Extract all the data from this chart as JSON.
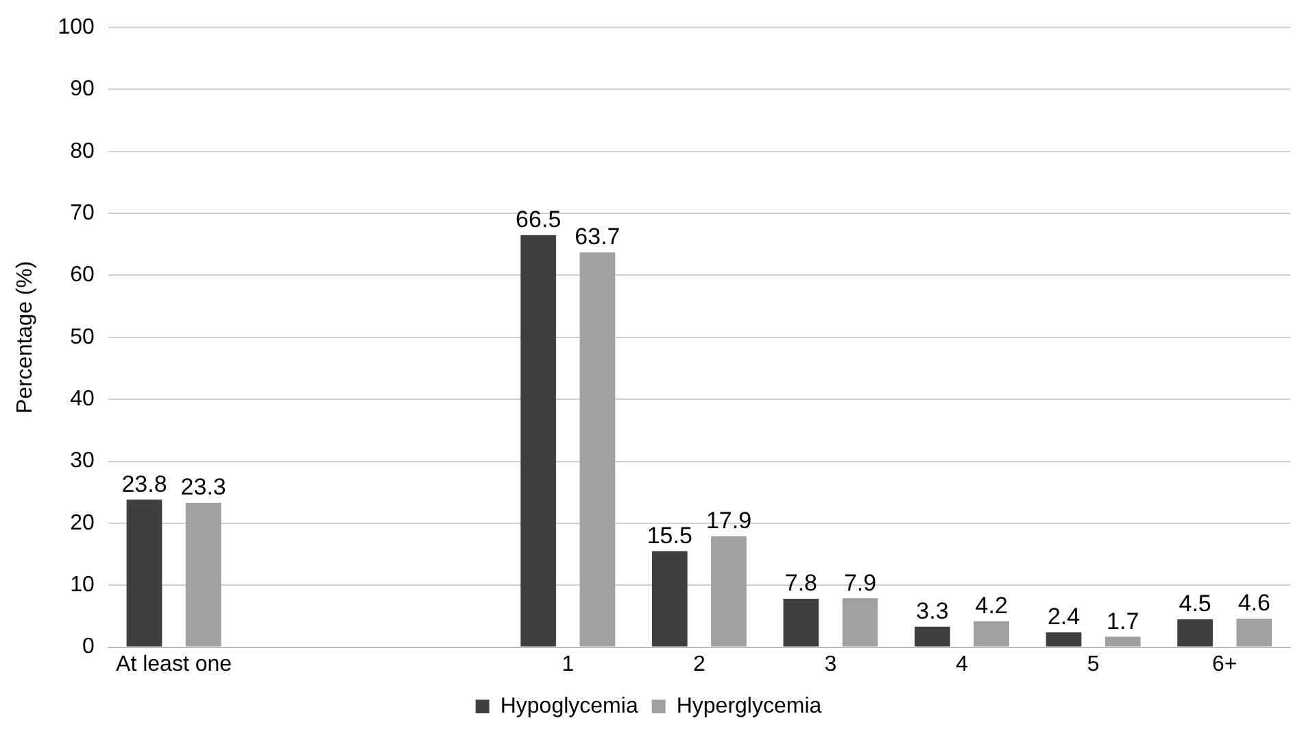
{
  "chart_data": {
    "type": "bar",
    "ylabel": "Percentage (%)",
    "categories": [
      "At least one",
      null,
      null,
      "1",
      "2",
      "3",
      "4",
      "5",
      "6+"
    ],
    "series": [
      {
        "name": "Hypoglycemia",
        "color": "#404040",
        "values": [
          23.8,
          null,
          null,
          66.5,
          15.5,
          7.8,
          3.3,
          2.4,
          4.5
        ]
      },
      {
        "name": "Hyperglycemia",
        "color": "#a0a0a0",
        "values": [
          23.3,
          null,
          null,
          63.7,
          17.9,
          7.9,
          4.2,
          1.7,
          4.6
        ]
      }
    ],
    "ylim": [
      0,
      100
    ],
    "yticks": [
      0,
      10,
      20,
      30,
      40,
      50,
      60,
      70,
      80,
      90,
      100
    ],
    "grid": "y",
    "legend": "bottom",
    "data_labels": true
  }
}
